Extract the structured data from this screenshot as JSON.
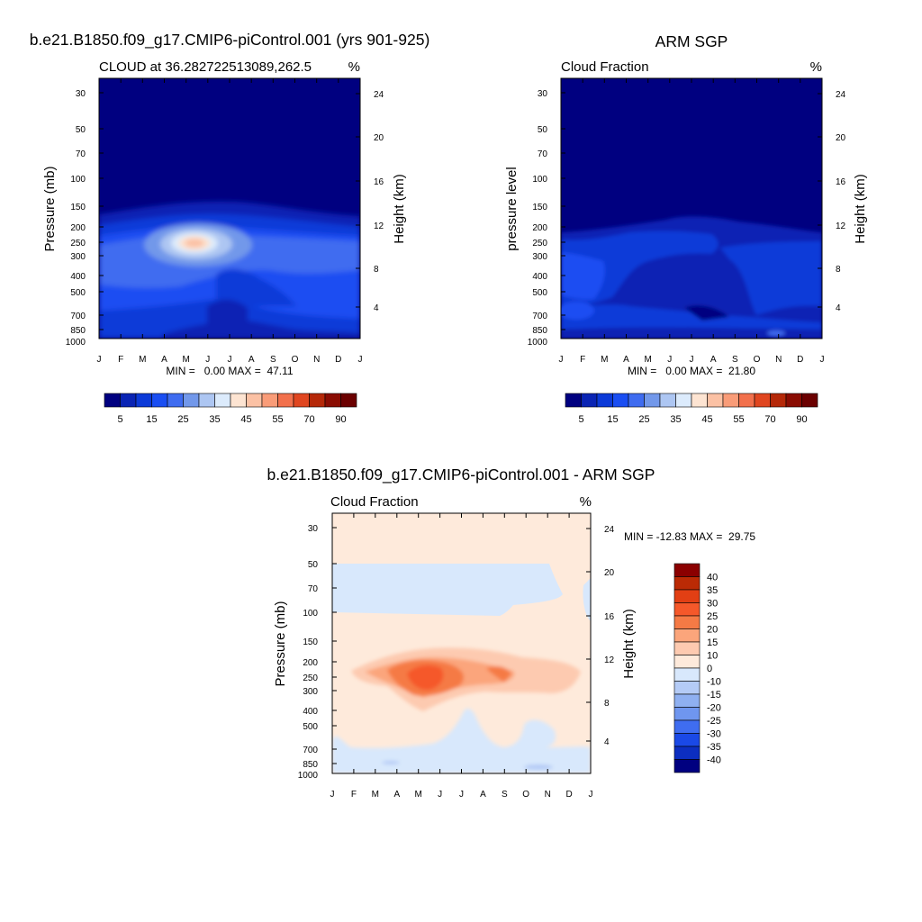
{
  "panel_model": {
    "main_title": "b.e21.B1850.f09_g17.CMIP6-piControl.001 (yrs 901-925)",
    "left_title": "CLOUD at 36.282722513089,262.5",
    "units": "%",
    "ylabel": "Pressure (mb)",
    "ylabel_right": "Height (km)",
    "stats": "MIN =   0.00 MAX =  47.11",
    "colorbar_labels": [
      "5",
      "15",
      "25",
      "35",
      "45",
      "55",
      "70",
      "90"
    ]
  },
  "panel_obs": {
    "main_title": "ARM SGP",
    "left_title": "Cloud Fraction",
    "units": "%",
    "ylabel": "pressure level",
    "ylabel_right": "Height (km)",
    "stats": "MIN =   0.00 MAX =  21.80",
    "colorbar_labels": [
      "5",
      "15",
      "25",
      "35",
      "45",
      "55",
      "70",
      "90"
    ]
  },
  "panel_diff": {
    "main_title": "b.e21.B1850.f09_g17.CMIP6-piControl.001 - ARM SGP",
    "left_title": "Cloud Fraction",
    "units": "%",
    "ylabel": "Pressure (mb)",
    "ylabel_right": "Height (km)",
    "stats": "MIN = -12.83 MAX =  29.75",
    "colorbar_labels": [
      "40",
      "35",
      "30",
      "25",
      "20",
      "15",
      "10",
      "0",
      "-10",
      "-15",
      "-20",
      "-25",
      "-30",
      "-35",
      "-40"
    ]
  },
  "chart_data": [
    {
      "type": "heatmap",
      "title": "b.e21.B1850.f09_g17.CMIP6-piControl.001 (yrs 901-925)",
      "subtitle": "CLOUD at 36.282722513089,262.5",
      "units": "%",
      "xlabel": "",
      "ylabel": "Pressure (mb)",
      "ylabel_right": "Height (km)",
      "x_ticks": [
        "J",
        "F",
        "M",
        "A",
        "M",
        "J",
        "J",
        "A",
        "S",
        "O",
        "N",
        "D",
        "J"
      ],
      "y_ticks": [
        30,
        50,
        70,
        100,
        150,
        200,
        250,
        300,
        400,
        500,
        700,
        850,
        1000
      ],
      "y_right_ticks": [
        24,
        20,
        16,
        12,
        8,
        4
      ],
      "y_scale": "log-pressure",
      "colorbar_levels": [
        5,
        15,
        25,
        35,
        45,
        55,
        70,
        90
      ],
      "min": 0.0,
      "max": 47.11
    },
    {
      "type": "heatmap",
      "title": "ARM SGP",
      "subtitle": "Cloud Fraction",
      "units": "%",
      "xlabel": "",
      "ylabel": "pressure level",
      "ylabel_right": "Height (km)",
      "x_ticks": [
        "J",
        "F",
        "M",
        "A",
        "M",
        "J",
        "J",
        "A",
        "S",
        "O",
        "N",
        "D",
        "J"
      ],
      "y_ticks": [
        30,
        50,
        70,
        100,
        150,
        200,
        250,
        300,
        400,
        500,
        700,
        850,
        1000
      ],
      "y_right_ticks": [
        24,
        20,
        16,
        12,
        8,
        4
      ],
      "y_scale": "log-pressure",
      "colorbar_levels": [
        5,
        15,
        25,
        35,
        45,
        55,
        70,
        90
      ],
      "min": 0.0,
      "max": 21.8
    },
    {
      "type": "heatmap",
      "title": "b.e21.B1850.f09_g17.CMIP6-piControl.001 - ARM SGP",
      "subtitle": "Cloud Fraction",
      "units": "%",
      "xlabel": "",
      "ylabel": "Pressure (mb)",
      "ylabel_right": "Height (km)",
      "x_ticks": [
        "J",
        "F",
        "M",
        "A",
        "M",
        "J",
        "J",
        "A",
        "S",
        "O",
        "N",
        "D",
        "J"
      ],
      "y_ticks": [
        30,
        50,
        70,
        100,
        150,
        200,
        250,
        300,
        400,
        500,
        700,
        850,
        1000
      ],
      "y_right_ticks": [
        24,
        20,
        16,
        12,
        8,
        4
      ],
      "y_scale": "log-pressure",
      "colorbar_levels": [
        40,
        35,
        30,
        25,
        20,
        15,
        10,
        0,
        -10,
        -15,
        -20,
        -25,
        -30,
        -35,
        -40
      ],
      "min": -12.83,
      "max": 29.75
    }
  ],
  "colors": {
    "seq_palette": [
      "#000080",
      "#0a24b4",
      "#0c3ad8",
      "#1a4ef2",
      "#3f6cf0",
      "#7298ea",
      "#adc6f2",
      "#dcebfc",
      "#fde4d2",
      "#fbc1a4",
      "#f99c78",
      "#f2704c",
      "#e04620",
      "#b52808",
      "#8a0c02",
      "#6b0000"
    ],
    "diff_palette_top_to_bottom": [
      "#8b0000",
      "#bb2a05",
      "#e23f14",
      "#f5582a",
      "#f57a45",
      "#fba57b",
      "#fdcab0",
      "#feeadb",
      "#d8e8fc",
      "#b4cbf6",
      "#8fb0f1",
      "#6f96ef",
      "#3f6df0",
      "#1a49e6",
      "#0c2ec0",
      "#031fa3",
      "#000080"
    ]
  }
}
